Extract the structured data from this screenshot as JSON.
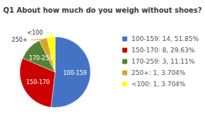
{
  "chart_data": {
    "type": "pie",
    "title": "Q1 About how much do you weigh without shoes?",
    "categories": [
      "100-159",
      "150-170",
      "170-259",
      "250+",
      "<100"
    ],
    "values": [
      51.85,
      29.63,
      11.11,
      3.704,
      3.704
    ],
    "colors": [
      "#4472C4",
      "#CC0000",
      "#548235",
      "#DAA520",
      "#FFFF00"
    ],
    "legend_labels": [
      "100-159: 14, 51.85%",
      "150-170: 8, 29.63%",
      "170-259: 3, 11.11%",
      "250+: 1, 3.704%",
      "<100: 1, 3.704%"
    ],
    "legend": "right"
  }
}
